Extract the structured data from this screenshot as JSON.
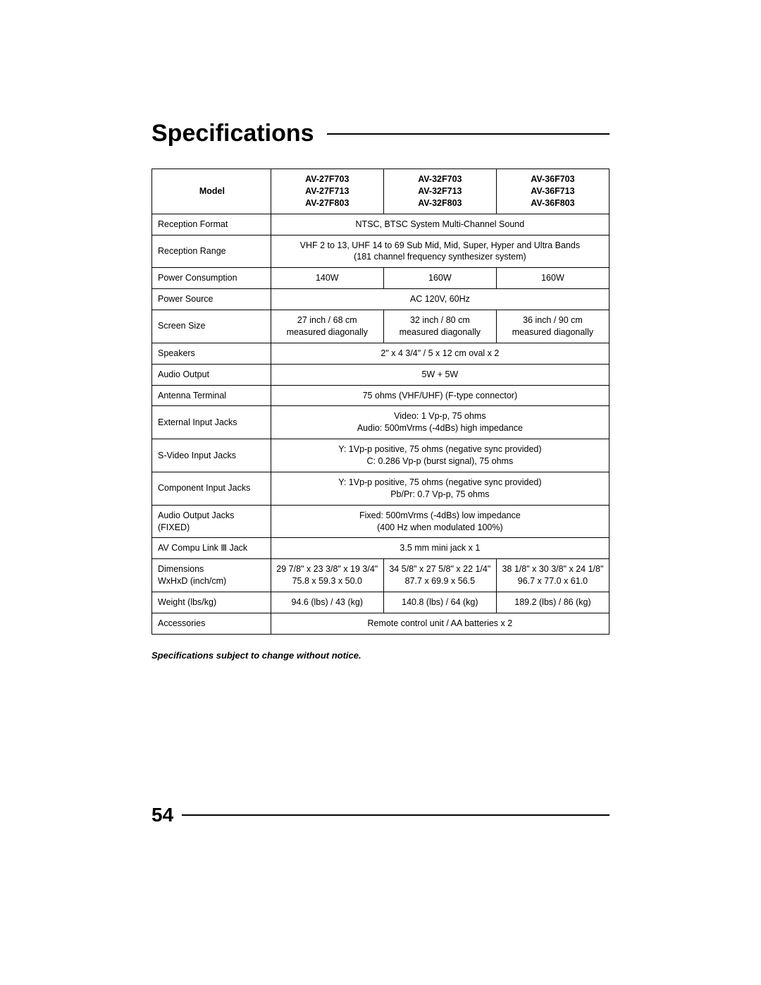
{
  "page": {
    "title": "Specifications",
    "page_number": "54",
    "note": "Specifications subject to change without notice."
  },
  "table": {
    "header": {
      "label": "Model",
      "col1": "AV-27F703\nAV-27F713\nAV-27F803",
      "col2": "AV-32F703\nAV-32F713\nAV-32F803",
      "col3": "AV-36F703\nAV-36F713\nAV-36F803"
    },
    "rows": [
      {
        "label": "Reception Format",
        "span": 3,
        "v1": "NTSC, BTSC System Multi-Channel Sound"
      },
      {
        "label": "Reception Range",
        "span": 3,
        "v1": "VHF 2 to 13, UHF 14 to 69 Sub Mid, Mid, Super, Hyper and Ultra Bands\n(181 channel frequency synthesizer system)"
      },
      {
        "label": "Power Consumption",
        "span": 1,
        "v1": "140W",
        "v2": "160W",
        "v3": "160W"
      },
      {
        "label": "Power Source",
        "span": 3,
        "v1": "AC 120V, 60Hz"
      },
      {
        "label": "Screen Size",
        "span": 1,
        "v1": "27 inch / 68 cm\nmeasured diagonally",
        "v2": "32 inch / 80 cm\nmeasured diagonally",
        "v3": "36 inch / 90 cm\nmeasured diagonally"
      },
      {
        "label": "Speakers",
        "span": 3,
        "v1": "2\" x 4 3/4\" / 5 x 12 cm oval x 2"
      },
      {
        "label": "Audio Output",
        "span": 3,
        "v1": "5W + 5W"
      },
      {
        "label": "Antenna Terminal",
        "span": 3,
        "v1": "75 ohms (VHF/UHF) (F-type connector)"
      },
      {
        "label": "External Input Jacks",
        "span": 3,
        "v1": "Video: 1 Vp-p, 75 ohms\nAudio: 500mVrms (-4dBs) high impedance"
      },
      {
        "label": "S-Video Input Jacks",
        "span": 3,
        "v1": "Y: 1Vp-p positive, 75 ohms (negative sync provided)\nC: 0.286 Vp-p (burst signal), 75 ohms"
      },
      {
        "label": "Component Input Jacks",
        "span": 3,
        "v1": "Y: 1Vp-p positive, 75 ohms (negative sync provided)\nPb/Pr: 0.7 Vp-p, 75 ohms"
      },
      {
        "label": "Audio Output Jacks (FIXED)",
        "span": 3,
        "v1": "Fixed: 500mVrms (-4dBs) low impedance\n(400 Hz when modulated 100%)"
      },
      {
        "label": "AV Compu Link Ⅲ Jack",
        "span": 3,
        "v1": "3.5 mm mini jack x 1"
      },
      {
        "label": "Dimensions\nWxHxD (inch/cm)",
        "span": 1,
        "v1": "29 7/8\" x 23 3/8\" x 19 3/4\"\n75.8 x 59.3 x 50.0",
        "v2": "34 5/8\" x 27 5/8\" x 22 1/4\"\n87.7 x 69.9 x 56.5",
        "v3": "38 1/8\" x 30 3/8\" x 24 1/8\"\n96.7 x 77.0 x 61.0"
      },
      {
        "label": "Weight (lbs/kg)",
        "span": 1,
        "v1": "94.6 (lbs) / 43 (kg)",
        "v2": "140.8 (lbs) / 64 (kg)",
        "v3": "189.2 (lbs) / 86 (kg)"
      },
      {
        "label": "Accessories",
        "span": 3,
        "v1": "Remote control unit / AA batteries x 2"
      }
    ]
  }
}
